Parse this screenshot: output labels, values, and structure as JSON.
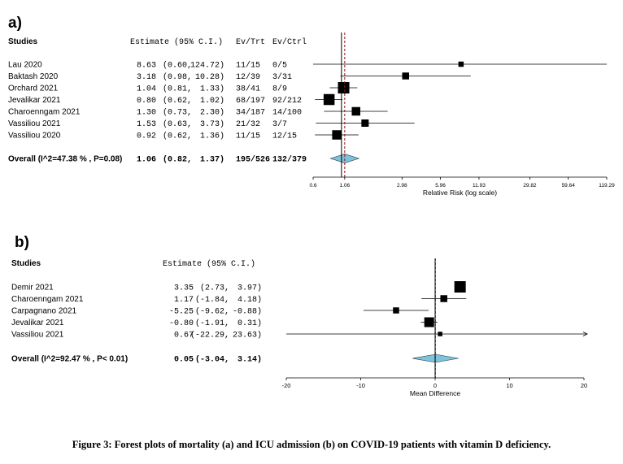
{
  "caption": "Figure 3: Forest plots of mortality (a) and ICU admission (b) on COVID-19 patients with vitamin D deficiency.",
  "colors": {
    "diamond": "#7bc4dc",
    "reference_line": "#8b1a1a"
  },
  "chart_data": [
    {
      "type": "forest",
      "panel_label": "a)",
      "headers": {
        "studies": "Studies",
        "estimate": "Estimate (95% C.I.)",
        "trt": "Ev/Trt",
        "ctrl": "Ev/Ctrl"
      },
      "xlabel": "Relative Risk (log scale)",
      "log_scale": true,
      "xlim": [
        0.6,
        119.29
      ],
      "ticks": [
        "0.6",
        "1.06",
        "2.98",
        "5.96",
        "11.93",
        "29.82",
        "59.64",
        "119.29"
      ],
      "studies": [
        {
          "name": "Lau  2020",
          "est": 8.63,
          "lo": 0.6,
          "hi": 124.72,
          "est_text": "8.63",
          "lo_text": "(0.60,",
          "hi_text": "124.72)",
          "trt": "11/15",
          "ctrl": "0/5",
          "weight": 0.25
        },
        {
          "name": "Baktash 2020",
          "est": 3.18,
          "lo": 0.98,
          "hi": 10.28,
          "est_text": "3.18",
          "lo_text": "(0.98,",
          "hi_text": "10.28)",
          "trt": "12/39",
          "ctrl": "3/31",
          "weight": 0.45
        },
        {
          "name": "Orchard 2021",
          "est": 1.04,
          "lo": 0.81,
          "hi": 1.33,
          "est_text": "1.04",
          "lo_text": "(0.81,",
          "hi_text": "1.33)",
          "trt": "38/41",
          "ctrl": "8/9",
          "weight": 1.0
        },
        {
          "name": "Jevalikar 2021",
          "est": 0.8,
          "lo": 0.62,
          "hi": 1.02,
          "est_text": "0.80",
          "lo_text": "(0.62,",
          "hi_text": "1.02)",
          "trt": "68/197",
          "ctrl": "92/212",
          "weight": 0.95
        },
        {
          "name": "Charoenngam 2021",
          "est": 1.3,
          "lo": 0.73,
          "hi": 2.3,
          "est_text": "1.30",
          "lo_text": "(0.73,",
          "hi_text": "2.30)",
          "trt": "34/187",
          "ctrl": "14/100",
          "weight": 0.65
        },
        {
          "name": "Vassiliou 2021",
          "est": 1.53,
          "lo": 0.63,
          "hi": 3.73,
          "est_text": "1.53",
          "lo_text": "(0.63,",
          "hi_text": "3.73)",
          "trt": "21/32",
          "ctrl": "3/7",
          "weight": 0.5
        },
        {
          "name": "Vassiliou 2020",
          "est": 0.92,
          "lo": 0.62,
          "hi": 1.36,
          "est_text": "0.92",
          "lo_text": "(0.62,",
          "hi_text": "1.36)",
          "trt": "11/15",
          "ctrl": "12/15",
          "weight": 0.75
        }
      ],
      "overall": {
        "label": "Overall (I^2=47.38 % , P=0.08)",
        "est": 1.06,
        "lo": 0.82,
        "hi": 1.37,
        "est_text": "1.06",
        "lo_text": "(0.82,",
        "hi_text": "1.37)",
        "trt": "195/526",
        "ctrl": "132/379"
      }
    },
    {
      "type": "forest",
      "panel_label": "b)",
      "headers": {
        "studies": "Studies",
        "estimate": "Estimate (95% C.I.)"
      },
      "xlabel": "Mean Difference",
      "log_scale": false,
      "xlim": [
        -20,
        20
      ],
      "ticks": [
        "-20",
        "-10",
        "0",
        "10",
        "20"
      ],
      "studies": [
        {
          "name": "Demir 2021",
          "est": 3.35,
          "lo": 2.73,
          "hi": 3.97,
          "est_text": "3.35",
          "lo_text": "(2.73,",
          "hi_text": "3.97)",
          "weight": 1.0
        },
        {
          "name": "Charoenngam 2021",
          "est": 1.17,
          "lo": -1.84,
          "hi": 4.18,
          "est_text": "1.17",
          "lo_text": "(-1.84,",
          "hi_text": "4.18)",
          "weight": 0.45
        },
        {
          "name": "Carpagnano 2021",
          "est": -5.25,
          "lo": -9.62,
          "hi": -0.88,
          "est_text": "-5.25",
          "lo_text": "(-9.62,",
          "hi_text": "-0.88)",
          "weight": 0.35
        },
        {
          "name": "Jevalikar 2021",
          "est": -0.8,
          "lo": -1.91,
          "hi": 0.31,
          "est_text": "-0.80",
          "lo_text": "(-1.91,",
          "hi_text": "0.31)",
          "weight": 0.8
        },
        {
          "name": "Vassiliou 2021",
          "est": 0.67,
          "lo": -22.29,
          "hi": 23.63,
          "est_text": "0.67",
          "lo_text": "(-22.29,",
          "hi_text": "23.63)",
          "weight": 0.15
        }
      ],
      "overall": {
        "label": "Overall (I^2=92.47 % , P< 0.01)",
        "est": 0.05,
        "lo": -3.04,
        "hi": 3.14,
        "est_text": "0.05",
        "lo_text": "(-3.04,",
        "hi_text": "3.14)"
      }
    }
  ]
}
